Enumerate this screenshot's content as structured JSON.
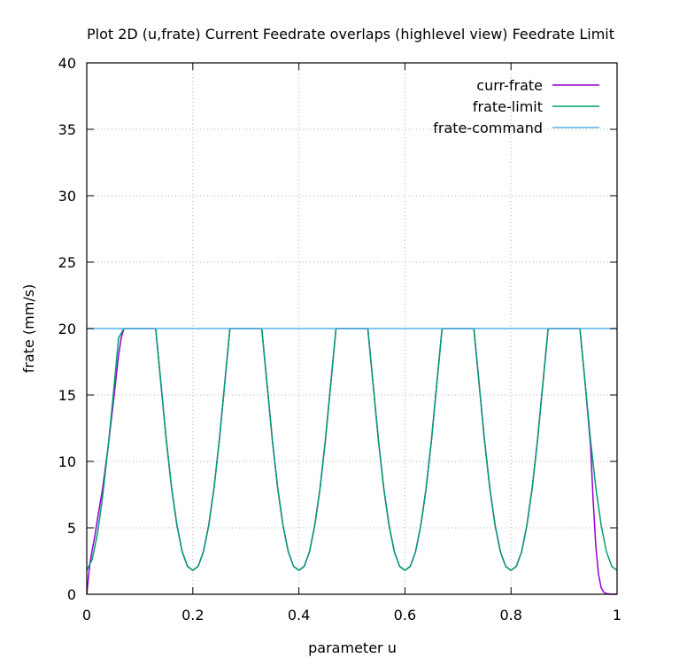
{
  "chart_data": {
    "type": "line",
    "title": "Plot 2D (u,frate) Current Feedrate overlaps (highlevel view) Feedrate Limit",
    "xlabel": "parameter u",
    "ylabel": "frate (mm/s)",
    "xlim": [
      0,
      1
    ],
    "ylim": [
      0,
      40
    ],
    "x_ticks": [
      0,
      0.2,
      0.4,
      0.6,
      0.8,
      1
    ],
    "x_tick_labels": [
      "0",
      "0.2",
      "0.4",
      "0.6",
      "0.8",
      "1"
    ],
    "y_ticks": [
      0,
      5,
      10,
      15,
      20,
      25,
      30,
      35,
      40
    ],
    "y_tick_labels": [
      "0",
      "5",
      "10",
      "15",
      "20",
      "25",
      "30",
      "35",
      "40"
    ],
    "grid": true,
    "legend_position": "top-right",
    "series": [
      {
        "name": "curr-frate",
        "color": "#9400d3",
        "x": [
          0,
          0.003,
          0.006,
          0.01,
          0.015,
          0.02,
          0.03,
          0.04,
          0.05,
          0.06,
          0.065,
          0.07,
          0.13,
          0.14,
          0.15,
          0.16,
          0.17,
          0.18,
          0.19,
          0.2,
          0.21,
          0.22,
          0.23,
          0.24,
          0.25,
          0.26,
          0.27,
          0.33,
          0.34,
          0.35,
          0.36,
          0.37,
          0.38,
          0.39,
          0.4,
          0.41,
          0.42,
          0.43,
          0.44,
          0.45,
          0.46,
          0.47,
          0.53,
          0.54,
          0.55,
          0.56,
          0.57,
          0.58,
          0.59,
          0.6,
          0.61,
          0.62,
          0.63,
          0.64,
          0.65,
          0.66,
          0.67,
          0.73,
          0.74,
          0.75,
          0.76,
          0.77,
          0.78,
          0.79,
          0.8,
          0.81,
          0.82,
          0.83,
          0.84,
          0.85,
          0.86,
          0.87,
          0.93,
          0.94,
          0.95,
          0.955,
          0.96,
          0.965,
          0.97,
          0.975,
          0.98,
          0.99,
          1
        ],
        "y": [
          0,
          1.2,
          2.3,
          3.3,
          4.3,
          5.6,
          8.0,
          11.0,
          14.4,
          18.0,
          19.3,
          20,
          20,
          15.8,
          11.6,
          8.0,
          5.2,
          3.2,
          2.1,
          1.8,
          2.1,
          3.2,
          5.2,
          8.0,
          11.6,
          15.8,
          20,
          20,
          15.8,
          11.6,
          8.0,
          5.2,
          3.2,
          2.1,
          1.8,
          2.1,
          3.2,
          5.2,
          8.0,
          11.6,
          15.8,
          20,
          20,
          15.8,
          11.6,
          8.0,
          5.2,
          3.2,
          2.1,
          1.8,
          2.1,
          3.2,
          5.2,
          8.0,
          11.6,
          15.8,
          20,
          20,
          15.8,
          11.6,
          8.0,
          5.2,
          3.2,
          2.1,
          1.8,
          2.1,
          3.2,
          5.2,
          8.0,
          11.6,
          15.8,
          20,
          20,
          15.8,
          11.2,
          7.0,
          3.6,
          1.5,
          0.5,
          0.15,
          0.05,
          0,
          0
        ]
      },
      {
        "name": "frate-limit",
        "color": "#009e73",
        "x": [
          0,
          0.01,
          0.02,
          0.03,
          0.04,
          0.05,
          0.06,
          0.07,
          0.13,
          0.14,
          0.15,
          0.16,
          0.17,
          0.18,
          0.19,
          0.2,
          0.21,
          0.22,
          0.23,
          0.24,
          0.25,
          0.26,
          0.27,
          0.33,
          0.34,
          0.35,
          0.36,
          0.37,
          0.38,
          0.39,
          0.4,
          0.41,
          0.42,
          0.43,
          0.44,
          0.45,
          0.46,
          0.47,
          0.53,
          0.54,
          0.55,
          0.56,
          0.57,
          0.58,
          0.59,
          0.6,
          0.61,
          0.62,
          0.63,
          0.64,
          0.65,
          0.66,
          0.67,
          0.73,
          0.74,
          0.75,
          0.76,
          0.77,
          0.78,
          0.79,
          0.8,
          0.81,
          0.82,
          0.83,
          0.84,
          0.85,
          0.86,
          0.87,
          0.93,
          0.94,
          0.95,
          0.96,
          0.97,
          0.98,
          0.99,
          1
        ],
        "y": [
          1.8,
          2.6,
          4.5,
          7.4,
          11.0,
          15.0,
          19.3,
          20,
          20,
          15.8,
          11.6,
          8.0,
          5.2,
          3.2,
          2.1,
          1.8,
          2.1,
          3.2,
          5.2,
          8.0,
          11.6,
          15.8,
          20,
          20,
          15.8,
          11.6,
          8.0,
          5.2,
          3.2,
          2.1,
          1.8,
          2.1,
          3.2,
          5.2,
          8.0,
          11.6,
          15.8,
          20,
          20,
          15.8,
          11.6,
          8.0,
          5.2,
          3.2,
          2.1,
          1.8,
          2.1,
          3.2,
          5.2,
          8.0,
          11.6,
          15.8,
          20,
          20,
          15.8,
          11.6,
          8.0,
          5.2,
          3.2,
          2.1,
          1.8,
          2.1,
          3.2,
          5.2,
          8.0,
          11.6,
          15.8,
          20,
          20,
          15.8,
          11.6,
          8.0,
          5.2,
          3.2,
          2.1,
          1.8
        ]
      },
      {
        "name": "frate-command",
        "color": "#56b4e9",
        "x": [
          0,
          1
        ],
        "y": [
          20,
          20
        ]
      }
    ]
  }
}
